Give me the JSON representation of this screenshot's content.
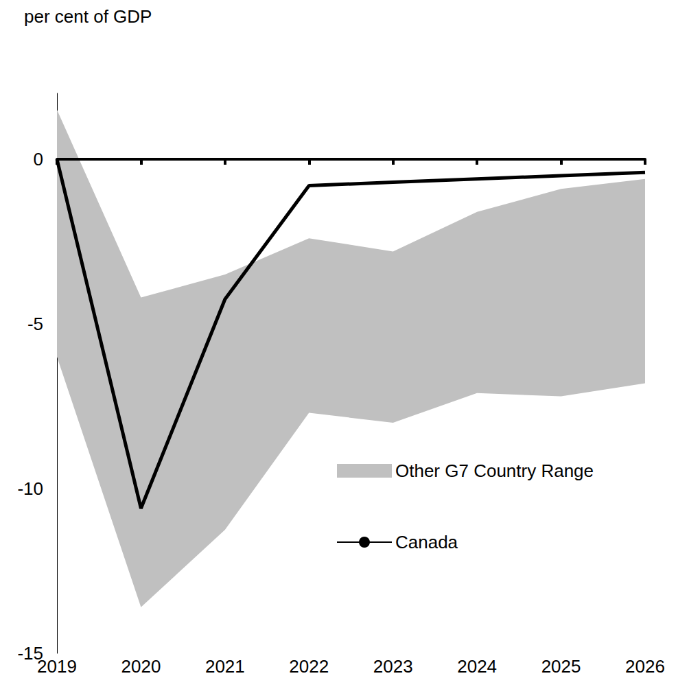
{
  "chart_data": {
    "type": "line",
    "y_label": "per cent of GDP",
    "categories": [
      "2019",
      "2020",
      "2021",
      "2022",
      "2023",
      "2024",
      "2025",
      "2026"
    ],
    "series": [
      {
        "name": "Other G7 Country Range",
        "type": "band",
        "color": "#c0c0c0",
        "lower": [
          -6.0,
          -13.6,
          -11.25,
          -7.7,
          -8.0,
          -7.1,
          -7.2,
          -6.8
        ],
        "upper": [
          1.5,
          -4.2,
          -3.5,
          -2.4,
          -2.8,
          -1.6,
          -0.9,
          -0.6
        ]
      },
      {
        "name": "Canada",
        "type": "line",
        "color": "#000000",
        "values": [
          0,
          -10.6,
          -4.25,
          -0.8,
          -0.7,
          -0.6,
          -0.5,
          -0.4
        ]
      }
    ],
    "ylim": [
      -15,
      2
    ],
    "yticks": [
      -15,
      -10,
      -5,
      0
    ],
    "grid": false,
    "legend": "lower right"
  }
}
